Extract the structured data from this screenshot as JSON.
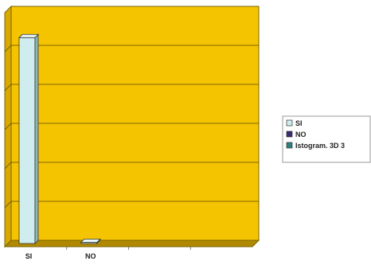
{
  "chart_data": {
    "type": "bar",
    "categories": [
      "SI",
      "NO"
    ],
    "series": [
      {
        "name": "Istogram. 3D 3",
        "values": [
          100,
          0
        ]
      }
    ],
    "ylim": [
      0,
      100
    ],
    "grid": true,
    "legend_position": "right",
    "legend": [
      {
        "label": "SI",
        "color": "#cfecef"
      },
      {
        "label": "NO",
        "color": "#3a2a6e"
      },
      {
        "label": "Istogram. 3D 3",
        "color": "#2f7f7f"
      }
    ],
    "colors": {
      "plot_background": "#f5c400",
      "wall_side": "#d9a900",
      "floor": "#b08900",
      "bar_front": "#cfecef",
      "bar_side": "#8fb7bb",
      "bar_top": "#e8f7f8"
    }
  }
}
